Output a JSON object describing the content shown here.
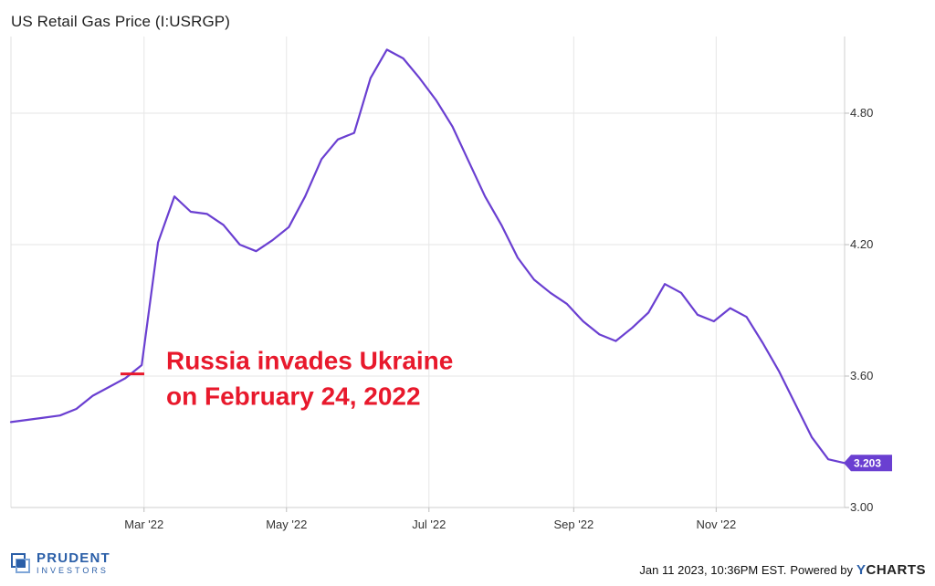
{
  "chart_data": {
    "type": "line",
    "title": "US Retail Gas Price (I:USRGP)",
    "series": [
      {
        "values": [
          [
            "2022-01-03",
            3.39
          ],
          [
            "2022-01-10",
            3.4
          ],
          [
            "2022-01-17",
            3.41
          ],
          [
            "2022-01-24",
            3.42
          ],
          [
            "2022-01-31",
            3.45
          ],
          [
            "2022-02-07",
            3.51
          ],
          [
            "2022-02-14",
            3.55
          ],
          [
            "2022-02-21",
            3.59
          ],
          [
            "2022-02-28",
            3.65
          ],
          [
            "2022-03-07",
            4.21
          ],
          [
            "2022-03-14",
            4.42
          ],
          [
            "2022-03-21",
            4.35
          ],
          [
            "2022-03-28",
            4.34
          ],
          [
            "2022-04-04",
            4.29
          ],
          [
            "2022-04-11",
            4.2
          ],
          [
            "2022-04-18",
            4.17
          ],
          [
            "2022-04-25",
            4.22
          ],
          [
            "2022-05-02",
            4.28
          ],
          [
            "2022-05-09",
            4.42
          ],
          [
            "2022-05-16",
            4.59
          ],
          [
            "2022-05-23",
            4.68
          ],
          [
            "2022-05-30",
            4.71
          ],
          [
            "2022-06-06",
            4.96
          ],
          [
            "2022-06-13",
            5.09
          ],
          [
            "2022-06-20",
            5.05
          ],
          [
            "2022-06-27",
            4.96
          ],
          [
            "2022-07-04",
            4.86
          ],
          [
            "2022-07-11",
            4.74
          ],
          [
            "2022-07-18",
            4.58
          ],
          [
            "2022-07-25",
            4.42
          ],
          [
            "2022-08-01",
            4.29
          ],
          [
            "2022-08-08",
            4.14
          ],
          [
            "2022-08-15",
            4.04
          ],
          [
            "2022-08-22",
            3.98
          ],
          [
            "2022-08-29",
            3.93
          ],
          [
            "2022-09-05",
            3.85
          ],
          [
            "2022-09-12",
            3.79
          ],
          [
            "2022-09-19",
            3.76
          ],
          [
            "2022-09-26",
            3.82
          ],
          [
            "2022-10-03",
            3.89
          ],
          [
            "2022-10-10",
            4.02
          ],
          [
            "2022-10-17",
            3.98
          ],
          [
            "2022-10-24",
            3.88
          ],
          [
            "2022-10-31",
            3.85
          ],
          [
            "2022-11-07",
            3.91
          ],
          [
            "2022-11-14",
            3.87
          ],
          [
            "2022-11-21",
            3.75
          ],
          [
            "2022-11-28",
            3.62
          ],
          [
            "2022-12-05",
            3.47
          ],
          [
            "2022-12-12",
            3.32
          ],
          [
            "2022-12-19",
            3.22
          ],
          [
            "2022-12-26",
            3.203
          ]
        ],
        "color": "#6a3fd1"
      }
    ],
    "x_ticks": [
      "Mar '22",
      "May '22",
      "Jul '22",
      "Sep '22",
      "Nov '22"
    ],
    "x_tick_dates": [
      "2022-03-01",
      "2022-05-01",
      "2022-07-01",
      "2022-09-01",
      "2022-11-01"
    ],
    "y_ticks": [
      "3.00",
      "3.60",
      "4.20",
      "4.80"
    ],
    "y_tick_values": [
      3.0,
      3.6,
      4.2,
      4.8
    ],
    "xlim": [
      "2022-01-03",
      "2022-12-26"
    ],
    "ylim": [
      3.0,
      5.15
    ],
    "grid": true,
    "last_value_label": "3.203",
    "annotation": {
      "text_line1": "Russia invades Ukraine",
      "text_line2": "on February 24, 2022",
      "marker_date": "2022-02-24",
      "marker_value": 3.61,
      "color": "#e8192c"
    }
  },
  "footer": {
    "logo_line1": "PRUDENT",
    "logo_line2": "INVESTORS",
    "timestamp": "Jan 11 2023, 10:36PM EST.",
    "powered_by": "Powered by",
    "brand_y": "Y",
    "brand_rest": "CHARTS"
  }
}
